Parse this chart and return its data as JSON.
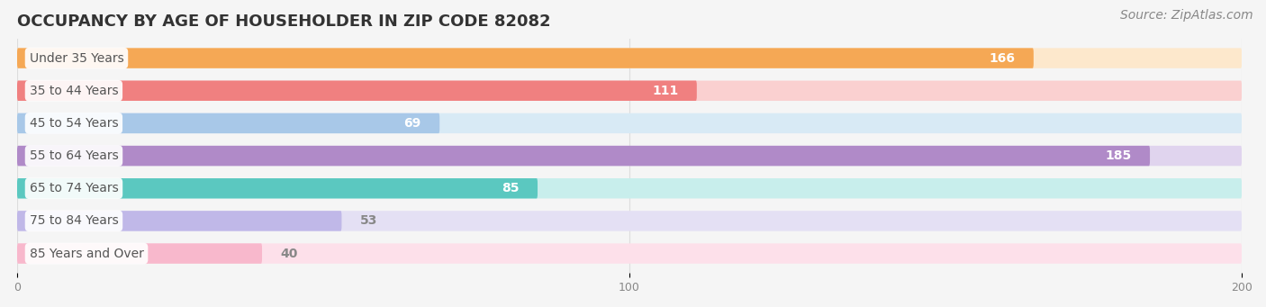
{
  "title": "OCCUPANCY BY AGE OF HOUSEHOLDER IN ZIP CODE 82082",
  "source": "Source: ZipAtlas.com",
  "categories": [
    "Under 35 Years",
    "35 to 44 Years",
    "45 to 54 Years",
    "55 to 64 Years",
    "65 to 74 Years",
    "75 to 84 Years",
    "85 Years and Over"
  ],
  "values": [
    166,
    111,
    69,
    185,
    85,
    53,
    40
  ],
  "bar_colors": [
    "#F5A855",
    "#F08080",
    "#A8C8E8",
    "#B08AC8",
    "#5BC8C0",
    "#C0B8E8",
    "#F8B8CC"
  ],
  "bar_bg_colors": [
    "#FDE8CC",
    "#FAD0D0",
    "#D8EAF5",
    "#E0D4EE",
    "#C8EEEC",
    "#E4E0F4",
    "#FDE0EA"
  ],
  "xlim": [
    0,
    200
  ],
  "xticks": [
    0,
    100,
    200
  ],
  "background_color": "#f5f5f5",
  "title_fontsize": 13,
  "source_fontsize": 10,
  "label_fontsize": 10,
  "value_fontsize": 10,
  "bar_height": 0.62,
  "label_text_color": "#555555",
  "value_inside_color": "#ffffff",
  "value_outside_color": "#888888"
}
